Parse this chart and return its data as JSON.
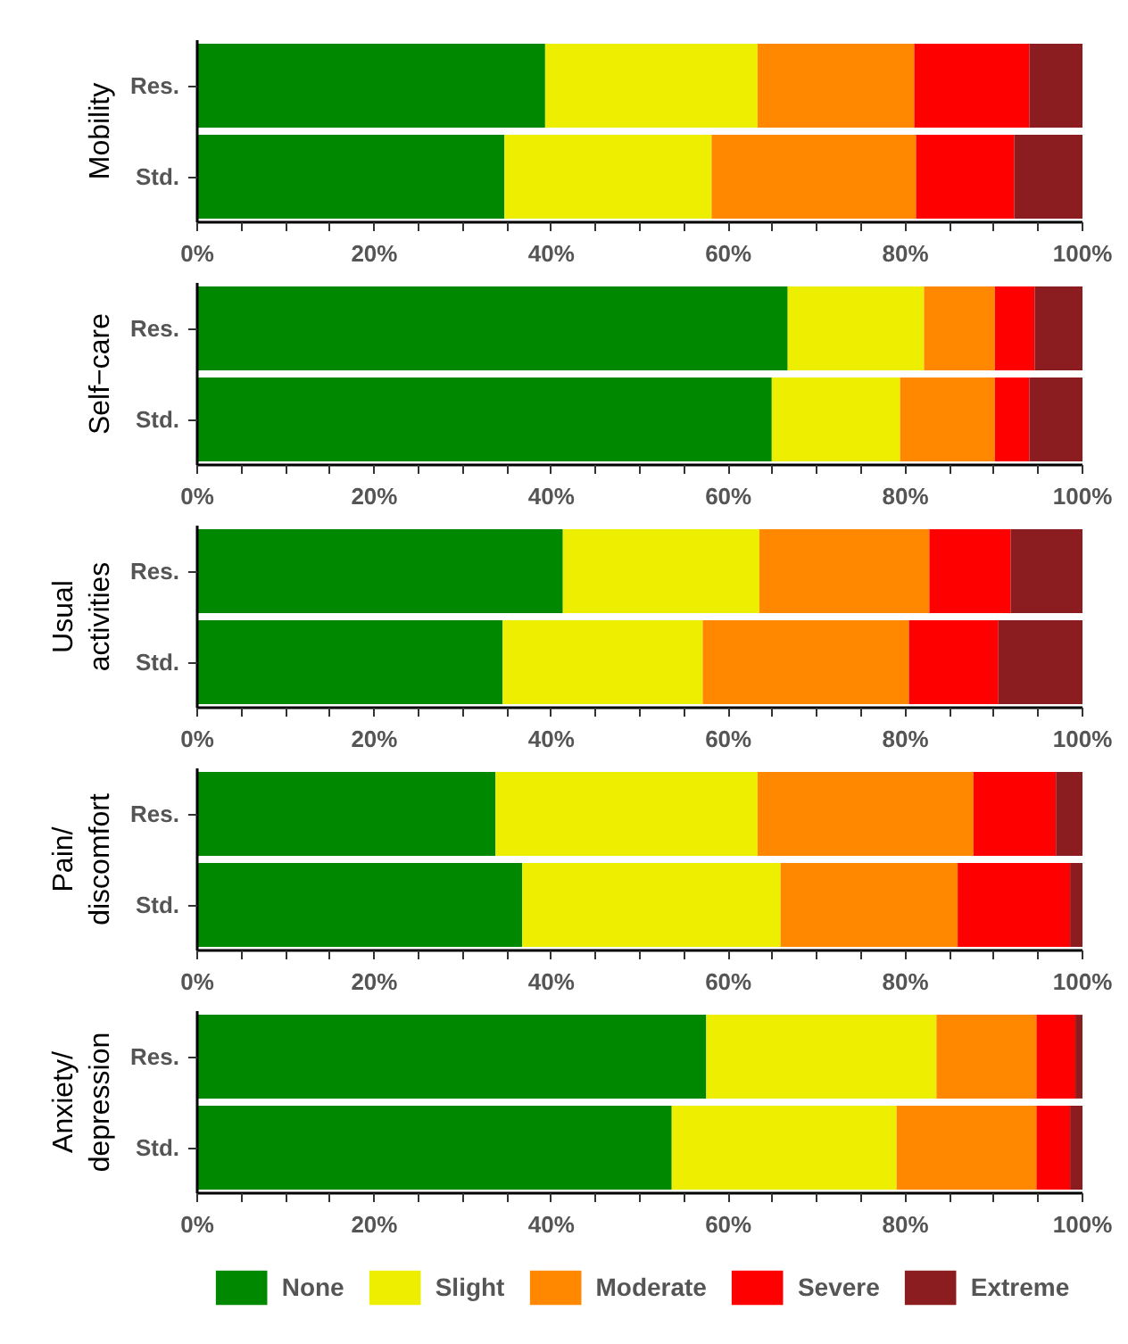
{
  "chart_data": [
    {
      "type": "bar",
      "orientation": "horizontal",
      "stacked": true,
      "ylabel": "Mobility",
      "categories": [
        "Res.",
        "Std."
      ],
      "xlim": [
        0,
        100
      ],
      "xticks": [
        {
          "value": 0,
          "label": "0%"
        },
        {
          "value": 5,
          "label": null
        },
        {
          "value": 10,
          "label": null
        },
        {
          "value": 15,
          "label": null
        },
        {
          "value": 20,
          "label": "20%"
        },
        {
          "value": 25,
          "label": null
        },
        {
          "value": 30,
          "label": null
        },
        {
          "value": 35,
          "label": null
        },
        {
          "value": 40,
          "label": "40%"
        },
        {
          "value": 45,
          "label": null
        },
        {
          "value": 50,
          "label": null
        },
        {
          "value": 55,
          "label": null
        },
        {
          "value": 60,
          "label": "60%"
        },
        {
          "value": 65,
          "label": null
        },
        {
          "value": 70,
          "label": null
        },
        {
          "value": 75,
          "label": null
        },
        {
          "value": 80,
          "label": "80%"
        },
        {
          "value": 85,
          "label": null
        },
        {
          "value": 90,
          "label": null
        },
        {
          "value": 95,
          "label": null
        },
        {
          "value": 100,
          "label": "100%"
        }
      ],
      "series": [
        {
          "color": "#008800",
          "values": [
            39.3,
            34.7
          ]
        },
        {
          "color": "#eeee00",
          "values": [
            24.0,
            23.4
          ]
        },
        {
          "color": "#ff8800",
          "values": [
            17.7,
            23.1
          ]
        },
        {
          "color": "#ff0000",
          "values": [
            13.0,
            11.1
          ]
        },
        {
          "color": "#8b1c1f",
          "values": [
            6.0,
            7.7
          ]
        }
      ]
    },
    {
      "type": "bar",
      "orientation": "horizontal",
      "stacked": true,
      "ylabel": "Self−care",
      "categories": [
        "Res.",
        "Std."
      ],
      "xlim": [
        0,
        100
      ],
      "xticks": [
        {
          "value": 0,
          "label": "0%"
        },
        {
          "value": 5,
          "label": null
        },
        {
          "value": 10,
          "label": null
        },
        {
          "value": 15,
          "label": null
        },
        {
          "value": 20,
          "label": "20%"
        },
        {
          "value": 25,
          "label": null
        },
        {
          "value": 30,
          "label": null
        },
        {
          "value": 35,
          "label": null
        },
        {
          "value": 40,
          "label": "40%"
        },
        {
          "value": 45,
          "label": null
        },
        {
          "value": 50,
          "label": null
        },
        {
          "value": 55,
          "label": null
        },
        {
          "value": 60,
          "label": "60%"
        },
        {
          "value": 65,
          "label": null
        },
        {
          "value": 70,
          "label": null
        },
        {
          "value": 75,
          "label": null
        },
        {
          "value": 80,
          "label": "80%"
        },
        {
          "value": 85,
          "label": null
        },
        {
          "value": 90,
          "label": null
        },
        {
          "value": 95,
          "label": null
        },
        {
          "value": 100,
          "label": "100%"
        }
      ],
      "series": [
        {
          "color": "#008800",
          "values": [
            66.7,
            64.9
          ]
        },
        {
          "color": "#eeee00",
          "values": [
            15.4,
            14.5
          ]
        },
        {
          "color": "#ff8800",
          "values": [
            8.0,
            10.7
          ]
        },
        {
          "color": "#ff0000",
          "values": [
            4.5,
            3.9
          ]
        },
        {
          "color": "#8b1c1f",
          "values": [
            5.4,
            6.0
          ]
        }
      ]
    },
    {
      "type": "bar",
      "orientation": "horizontal",
      "stacked": true,
      "ylabel": "Usual\nactivities",
      "categories": [
        "Res.",
        "Std."
      ],
      "xlim": [
        0,
        100
      ],
      "xticks": [
        {
          "value": 0,
          "label": "0%"
        },
        {
          "value": 5,
          "label": null
        },
        {
          "value": 10,
          "label": null
        },
        {
          "value": 15,
          "label": null
        },
        {
          "value": 20,
          "label": "20%"
        },
        {
          "value": 25,
          "label": null
        },
        {
          "value": 30,
          "label": null
        },
        {
          "value": 35,
          "label": null
        },
        {
          "value": 40,
          "label": "40%"
        },
        {
          "value": 45,
          "label": null
        },
        {
          "value": 50,
          "label": null
        },
        {
          "value": 55,
          "label": null
        },
        {
          "value": 60,
          "label": "60%"
        },
        {
          "value": 65,
          "label": null
        },
        {
          "value": 70,
          "label": null
        },
        {
          "value": 75,
          "label": null
        },
        {
          "value": 80,
          "label": "80%"
        },
        {
          "value": 85,
          "label": null
        },
        {
          "value": 90,
          "label": null
        },
        {
          "value": 95,
          "label": null
        },
        {
          "value": 100,
          "label": "100%"
        }
      ],
      "series": [
        {
          "color": "#008800",
          "values": [
            41.3,
            34.5
          ]
        },
        {
          "color": "#eeee00",
          "values": [
            22.2,
            22.6
          ]
        },
        {
          "color": "#ff8800",
          "values": [
            19.2,
            23.3
          ]
        },
        {
          "color": "#ff0000",
          "values": [
            9.2,
            10.1
          ]
        },
        {
          "color": "#8b1c1f",
          "values": [
            8.1,
            9.5
          ]
        }
      ]
    },
    {
      "type": "bar",
      "orientation": "horizontal",
      "stacked": true,
      "ylabel": "Pain/\ndiscomfort",
      "categories": [
        "Res.",
        "Std."
      ],
      "xlim": [
        0,
        100
      ],
      "xticks": [
        {
          "value": 0,
          "label": "0%"
        },
        {
          "value": 5,
          "label": null
        },
        {
          "value": 10,
          "label": null
        },
        {
          "value": 15,
          "label": null
        },
        {
          "value": 20,
          "label": "20%"
        },
        {
          "value": 25,
          "label": null
        },
        {
          "value": 30,
          "label": null
        },
        {
          "value": 35,
          "label": null
        },
        {
          "value": 40,
          "label": "40%"
        },
        {
          "value": 45,
          "label": null
        },
        {
          "value": 50,
          "label": null
        },
        {
          "value": 55,
          "label": null
        },
        {
          "value": 60,
          "label": "60%"
        },
        {
          "value": 65,
          "label": null
        },
        {
          "value": 70,
          "label": null
        },
        {
          "value": 75,
          "label": null
        },
        {
          "value": 80,
          "label": "80%"
        },
        {
          "value": 85,
          "label": null
        },
        {
          "value": 90,
          "label": null
        },
        {
          "value": 95,
          "label": null
        },
        {
          "value": 100,
          "label": "100%"
        }
      ],
      "series": [
        {
          "color": "#008800",
          "values": [
            33.7,
            36.7
          ]
        },
        {
          "color": "#eeee00",
          "values": [
            29.6,
            29.2
          ]
        },
        {
          "color": "#ff8800",
          "values": [
            24.4,
            20.0
          ]
        },
        {
          "color": "#ff0000",
          "values": [
            9.3,
            12.7
          ]
        },
        {
          "color": "#8b1c1f",
          "values": [
            3.0,
            1.4
          ]
        }
      ]
    },
    {
      "type": "bar",
      "orientation": "horizontal",
      "stacked": true,
      "ylabel": "Anxiety/\ndepression",
      "categories": [
        "Res.",
        "Std."
      ],
      "xlim": [
        0,
        100
      ],
      "xticks": [
        {
          "value": 0,
          "label": "0%"
        },
        {
          "value": 5,
          "label": null
        },
        {
          "value": 10,
          "label": null
        },
        {
          "value": 15,
          "label": null
        },
        {
          "value": 20,
          "label": "20%"
        },
        {
          "value": 25,
          "label": null
        },
        {
          "value": 30,
          "label": null
        },
        {
          "value": 35,
          "label": null
        },
        {
          "value": 40,
          "label": "40%"
        },
        {
          "value": 45,
          "label": null
        },
        {
          "value": 50,
          "label": null
        },
        {
          "value": 55,
          "label": null
        },
        {
          "value": 60,
          "label": "60%"
        },
        {
          "value": 65,
          "label": null
        },
        {
          "value": 70,
          "label": null
        },
        {
          "value": 75,
          "label": null
        },
        {
          "value": 80,
          "label": "80%"
        },
        {
          "value": 85,
          "label": null
        },
        {
          "value": 90,
          "label": null
        },
        {
          "value": 95,
          "label": null
        },
        {
          "value": 100,
          "label": "100%"
        }
      ],
      "legend": "bottom",
      "series": [
        {
          "name": "None",
          "color": "#008800",
          "values": [
            57.5,
            53.6
          ]
        },
        {
          "name": "Slight",
          "color": "#eeee00",
          "values": [
            26.0,
            25.4
          ]
        },
        {
          "name": "Moderate",
          "color": "#ff8800",
          "values": [
            11.3,
            15.8
          ]
        },
        {
          "name": "Severe",
          "color": "#ff0000",
          "values": [
            4.4,
            3.8
          ]
        },
        {
          "name": "Extreme",
          "color": "#8b1c1f",
          "values": [
            0.8,
            1.4
          ]
        }
      ]
    }
  ]
}
